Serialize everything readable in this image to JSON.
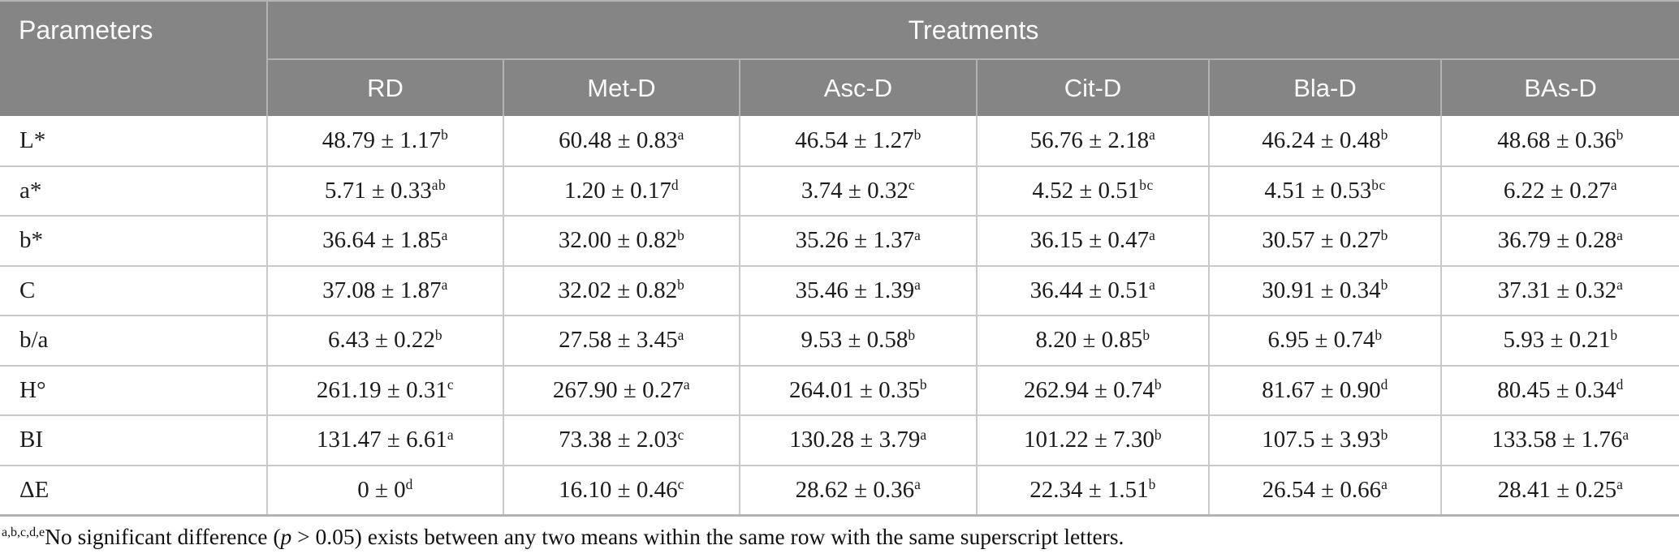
{
  "colors": {
    "header_bg": "#858585",
    "header_text": "#fafafa",
    "header_grid": "#b2b2b2",
    "body_text": "#1c1c1c",
    "grid": "#c9c9c9",
    "bottom_border": "#b3b3b3",
    "page_bg": "#ffffff"
  },
  "chart_data": {
    "type": "table",
    "title": "",
    "row_header_label": "Parameters",
    "group_header_label": "Treatments",
    "columns": [
      "RD",
      "Met-D",
      "Asc-D",
      "Cit-D",
      "Bla-D",
      "BAs-D"
    ],
    "rows": [
      {
        "param": "L*",
        "values": [
          {
            "text": "48.79 ± 1.17",
            "sup": "b"
          },
          {
            "text": "60.48 ± 0.83",
            "sup": "a"
          },
          {
            "text": "46.54 ± 1.27",
            "sup": "b"
          },
          {
            "text": "56.76 ± 2.18",
            "sup": "a"
          },
          {
            "text": "46.24 ± 0.48",
            "sup": "b"
          },
          {
            "text": "48.68 ± 0.36",
            "sup": "b"
          }
        ]
      },
      {
        "param": "a*",
        "values": [
          {
            "text": "5.71 ± 0.33",
            "sup": "ab"
          },
          {
            "text": "1.20 ± 0.17",
            "sup": "d"
          },
          {
            "text": "3.74 ± 0.32",
            "sup": "c"
          },
          {
            "text": "4.52 ± 0.51",
            "sup": "bc"
          },
          {
            "text": "4.51 ± 0.53",
            "sup": "bc"
          },
          {
            "text": "6.22 ± 0.27",
            "sup": "a"
          }
        ]
      },
      {
        "param": "b*",
        "values": [
          {
            "text": "36.64 ± 1.85",
            "sup": "a"
          },
          {
            "text": "32.00 ± 0.82",
            "sup": "b"
          },
          {
            "text": "35.26 ± 1.37",
            "sup": "a"
          },
          {
            "text": "36.15 ± 0.47",
            "sup": "a"
          },
          {
            "text": "30.57 ± 0.27",
            "sup": "b"
          },
          {
            "text": "36.79 ± 0.28",
            "sup": "a"
          }
        ]
      },
      {
        "param": "C",
        "values": [
          {
            "text": "37.08 ± 1.87",
            "sup": "a"
          },
          {
            "text": "32.02 ± 0.82",
            "sup": "b"
          },
          {
            "text": "35.46 ± 1.39",
            "sup": "a"
          },
          {
            "text": "36.44 ± 0.51",
            "sup": "a"
          },
          {
            "text": "30.91 ± 0.34",
            "sup": "b"
          },
          {
            "text": "37.31 ± 0.32",
            "sup": "a"
          }
        ]
      },
      {
        "param": "b/a",
        "values": [
          {
            "text": "6.43 ± 0.22",
            "sup": "b"
          },
          {
            "text": "27.58 ± 3.45",
            "sup": "a"
          },
          {
            "text": "9.53 ± 0.58",
            "sup": "b"
          },
          {
            "text": "8.20 ± 0.85",
            "sup": "b"
          },
          {
            "text": "6.95 ± 0.74",
            "sup": "b"
          },
          {
            "text": "5.93 ± 0.21",
            "sup": "b"
          }
        ]
      },
      {
        "param": "H°",
        "values": [
          {
            "text": "261.19 ± 0.31",
            "sup": "c"
          },
          {
            "text": "267.90 ± 0.27",
            "sup": "a"
          },
          {
            "text": "264.01 ± 0.35",
            "sup": "b"
          },
          {
            "text": "262.94 ± 0.74",
            "sup": "b"
          },
          {
            "text": "81.67 ± 0.90",
            "sup": "d"
          },
          {
            "text": "80.45 ± 0.34",
            "sup": "d"
          }
        ]
      },
      {
        "param": "BI",
        "values": [
          {
            "text": "131.47 ± 6.61",
            "sup": "a"
          },
          {
            "text": "73.38 ± 2.03",
            "sup": "c"
          },
          {
            "text": "130.28 ± 3.79",
            "sup": "a"
          },
          {
            "text": "101.22 ± 7.30",
            "sup": "b"
          },
          {
            "text": "107.5 ± 3.93",
            "sup": "b"
          },
          {
            "text": "133.58 ± 1.76",
            "sup": "a"
          }
        ]
      },
      {
        "param": "ΔE",
        "values": [
          {
            "text": "0 ± 0",
            "sup": "d"
          },
          {
            "text": "16.10 ± 0.46",
            "sup": "c"
          },
          {
            "text": "28.62 ± 0.36",
            "sup": "a"
          },
          {
            "text": "22.34 ± 1.51",
            "sup": "b"
          },
          {
            "text": "26.54 ± 0.66",
            "sup": "a"
          },
          {
            "text": "28.41 ± 0.25",
            "sup": "a"
          }
        ]
      }
    ],
    "footnote": {
      "sup_prefix": "a,b,c,d,e",
      "text_before_p": "No significant difference (",
      "p": "p",
      "text_after_p": " > 0.05) exists between any two means within the same row with the same superscript letters."
    }
  }
}
